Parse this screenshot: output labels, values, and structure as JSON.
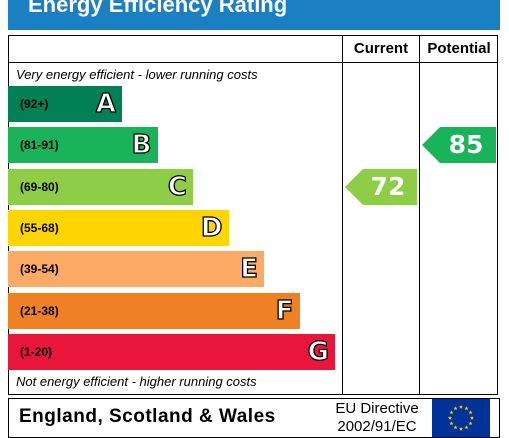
{
  "title": "Energy Efficiency Rating",
  "columns": {
    "current": "Current",
    "potential": "Potential"
  },
  "notes": {
    "top": "Very energy efficient - lower running costs",
    "bottom": "Not energy efficient - higher running costs"
  },
  "footer": {
    "region": "England, Scotland & Wales",
    "directive_line1": "EU Directive",
    "directive_line2": "2002/91/EC",
    "flag_icon": "eu-flag-icon"
  },
  "chart_data": {
    "type": "bar",
    "categories": [
      "A",
      "B",
      "C",
      "D",
      "E",
      "F",
      "G"
    ],
    "ranges": [
      "(92+)",
      "(81-91)",
      "(69-80)",
      "(55-68)",
      "(39-54)",
      "(21-38)",
      "(1-20)"
    ],
    "colors": [
      "#008054",
      "#19b459",
      "#8dce46",
      "#ffd500",
      "#fcaa65",
      "#ef8023",
      "#e9153b"
    ],
    "current": {
      "label": "Current",
      "value": 72,
      "band": "C",
      "color": "#8dce46"
    },
    "potential": {
      "label": "Potential",
      "value": 85,
      "band": "B",
      "color": "#19b459"
    }
  }
}
